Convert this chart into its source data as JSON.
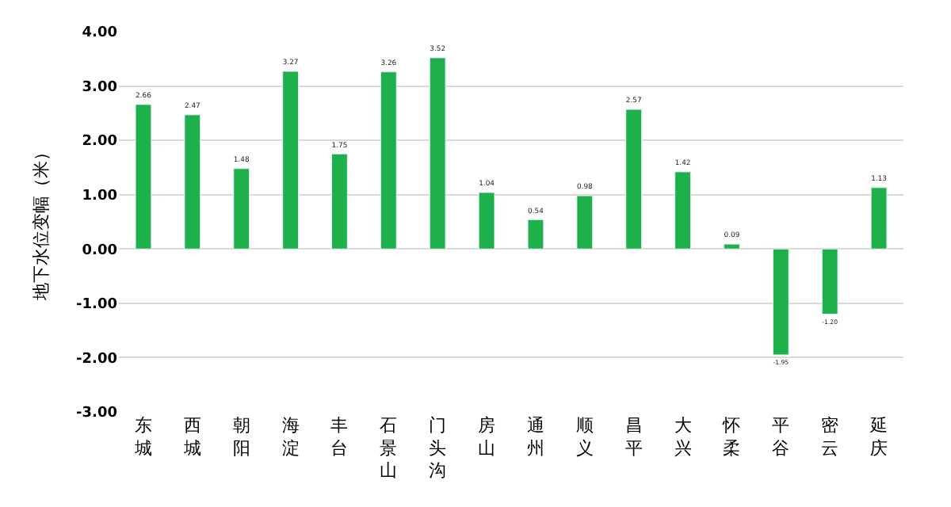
{
  "chart_data": {
    "type": "bar",
    "ylabel": "地下水位变幅（米）",
    "categories": [
      "东城",
      "西城",
      "朝阳",
      "海淀",
      "丰台",
      "石景山",
      "门头沟",
      "房山",
      "通州",
      "顺义",
      "昌平",
      "大兴",
      "怀柔",
      "平谷",
      "密云",
      "延庆"
    ],
    "values": [
      2.66,
      2.47,
      1.48,
      3.27,
      1.75,
      3.26,
      3.52,
      1.04,
      0.54,
      0.98,
      2.57,
      1.42,
      0.09,
      -1.95,
      -1.2,
      1.13
    ],
    "value_labels": [
      "2.66",
      "2.47",
      "1.48",
      "3.27",
      "1.75",
      "3.26",
      "3.52",
      "1.04",
      "0.54",
      "0.98",
      "2.57",
      "1.42",
      "0.09",
      "-1.95",
      "-1.20",
      "1.13"
    ],
    "color": "#1db04b",
    "ylim": [
      -3,
      4
    ],
    "yticks": [
      {
        "value": -3,
        "label": "-3.00"
      },
      {
        "value": -2,
        "label": "-2.00"
      },
      {
        "value": -1,
        "label": "-1.00"
      },
      {
        "value": 0,
        "label": "0.00"
      },
      {
        "value": 1,
        "label": "1.00"
      },
      {
        "value": 2,
        "label": "2.00"
      },
      {
        "value": 3,
        "label": "3.00"
      },
      {
        "value": 4,
        "label": "4.00"
      }
    ],
    "grid": "y"
  }
}
